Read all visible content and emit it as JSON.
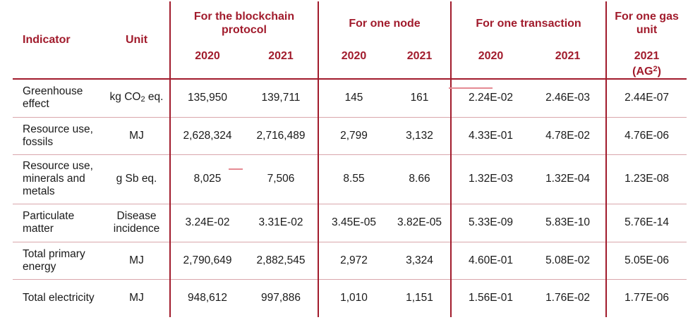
{
  "headers": {
    "indicator": "Indicator",
    "unit": "Unit",
    "groups": {
      "blockchain": "For the blockchain protocol",
      "node": "For one node",
      "transaction": "For one transaction",
      "gas": "For one gas unit"
    },
    "years": {
      "blockchain_2020": "2020",
      "blockchain_2021": "2021",
      "node_2020": "2020",
      "node_2021": "2021",
      "transaction_2020": "2020",
      "transaction_2021": "2021",
      "gas_2021": "2021",
      "gas_note_prefix": "(AG",
      "gas_note_sup": "2",
      "gas_note_suffix": ")"
    }
  },
  "rows": [
    {
      "indicator": "Greenhouse effect",
      "unit_prefix": "kg CO",
      "unit_sub": "2",
      "unit_suffix": " eq.",
      "values": [
        "135,950",
        "139,711",
        "145",
        "161",
        "2.24E-02",
        "2.46E-03",
        "2.44E-07"
      ]
    },
    {
      "indicator": "Resource use, fossils",
      "unit": "MJ",
      "values": [
        "2,628,324",
        "2,716,489",
        "2,799",
        "3,132",
        "4.33E-01",
        "4.78E-02",
        "4.76E-06"
      ]
    },
    {
      "indicator": "Resource use, minerals and metals",
      "unit": "g Sb eq.",
      "values": [
        "8,025",
        "7,506",
        "8.55",
        "8.66",
        "1.32E-03",
        "1.32E-04",
        "1.23E-08"
      ]
    },
    {
      "indicator": "Particulate matter",
      "unit": "Disease incidence",
      "values": [
        "3.24E-02",
        "3.31E-02",
        "3.45E-05",
        "3.82E-05",
        "5.33E-09",
        "5.83E-10",
        "5.76E-14"
      ]
    },
    {
      "indicator": "Total primary energy",
      "unit": "MJ",
      "values": [
        "2,790,649",
        "2,882,545",
        "2,972",
        "3,324",
        "4.60E-01",
        "5.08E-02",
        "5.05E-06"
      ]
    },
    {
      "indicator": "Total electricity",
      "unit": "MJ",
      "values": [
        "948,612",
        "997,886",
        "1,010",
        "1,151",
        "1.56E-01",
        "1.76E-02",
        "1.77E-06"
      ]
    }
  ],
  "colors": {
    "header_text": "#a11b2c",
    "separator": "#a11b2c",
    "row_rule": "#d9a6ab"
  }
}
